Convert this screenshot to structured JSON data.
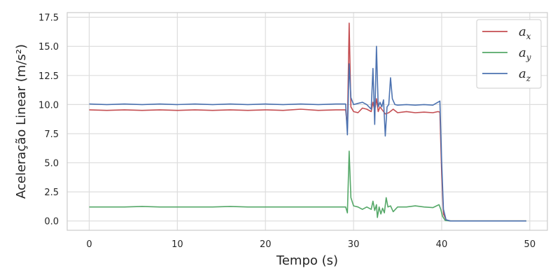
{
  "chart_data": {
    "type": "line",
    "xlabel": "Tempo (s)",
    "ylabel": "Aceleração Linear (m/s²)",
    "xlim": [
      -2.5,
      52.0
    ],
    "ylim": [
      -0.8,
      17.9
    ],
    "xticks": [
      0,
      10,
      20,
      30,
      40,
      50
    ],
    "xtick_labels": [
      "0",
      "10",
      "20",
      "30",
      "40",
      "50"
    ],
    "yticks": [
      0.0,
      2.5,
      5.0,
      7.5,
      10.0,
      12.5,
      15.0,
      17.5
    ],
    "ytick_labels": [
      "0.0",
      "2.5",
      "5.0",
      "7.5",
      "10.0",
      "12.5",
      "15.0",
      "17.5"
    ],
    "grid": true,
    "legend_position": "top-right",
    "series": [
      {
        "name": "a",
        "subscript": "x",
        "color": "#c44e52",
        "points": [
          [
            0,
            9.55
          ],
          [
            2,
            9.5
          ],
          [
            4,
            9.55
          ],
          [
            6,
            9.5
          ],
          [
            8,
            9.55
          ],
          [
            10,
            9.5
          ],
          [
            12,
            9.55
          ],
          [
            14,
            9.5
          ],
          [
            16,
            9.55
          ],
          [
            18,
            9.5
          ],
          [
            20,
            9.55
          ],
          [
            22,
            9.5
          ],
          [
            24,
            9.6
          ],
          [
            26,
            9.5
          ],
          [
            28,
            9.55
          ],
          [
            29.1,
            9.55
          ],
          [
            29.3,
            8.0
          ],
          [
            29.5,
            17.0
          ],
          [
            29.7,
            9.8
          ],
          [
            30.0,
            9.4
          ],
          [
            30.5,
            9.3
          ],
          [
            31.0,
            9.7
          ],
          [
            31.5,
            9.6
          ],
          [
            32.0,
            9.4
          ],
          [
            32.2,
            10.2
          ],
          [
            32.4,
            9.5
          ],
          [
            32.6,
            10.5
          ],
          [
            32.8,
            9.4
          ],
          [
            33.0,
            9.8
          ],
          [
            33.3,
            9.5
          ],
          [
            33.6,
            9.2
          ],
          [
            34.0,
            9.3
          ],
          [
            34.5,
            9.6
          ],
          [
            35.0,
            9.3
          ],
          [
            36.0,
            9.4
          ],
          [
            37.0,
            9.3
          ],
          [
            38.0,
            9.35
          ],
          [
            39.0,
            9.3
          ],
          [
            39.6,
            9.4
          ],
          [
            39.8,
            9.35
          ],
          [
            40.0,
            4.0
          ],
          [
            40.2,
            0.6
          ],
          [
            40.5,
            0.1
          ],
          [
            41.0,
            0.0
          ],
          [
            45.0,
            0.0
          ],
          [
            49.6,
            0.0
          ]
        ]
      },
      {
        "name": "a",
        "subscript": "y",
        "color": "#55a868",
        "points": [
          [
            0,
            1.2
          ],
          [
            2,
            1.2
          ],
          [
            4,
            1.2
          ],
          [
            6,
            1.25
          ],
          [
            8,
            1.2
          ],
          [
            10,
            1.2
          ],
          [
            12,
            1.2
          ],
          [
            14,
            1.2
          ],
          [
            16,
            1.25
          ],
          [
            18,
            1.2
          ],
          [
            20,
            1.2
          ],
          [
            22,
            1.2
          ],
          [
            24,
            1.2
          ],
          [
            26,
            1.2
          ],
          [
            28,
            1.2
          ],
          [
            29.1,
            1.2
          ],
          [
            29.3,
            0.7
          ],
          [
            29.5,
            6.0
          ],
          [
            29.7,
            2.0
          ],
          [
            30.0,
            1.3
          ],
          [
            30.5,
            1.2
          ],
          [
            31.0,
            1.0
          ],
          [
            31.5,
            1.2
          ],
          [
            32.0,
            1.0
          ],
          [
            32.2,
            1.7
          ],
          [
            32.4,
            0.9
          ],
          [
            32.6,
            1.4
          ],
          [
            32.7,
            0.3
          ],
          [
            32.9,
            1.2
          ],
          [
            33.1,
            0.6
          ],
          [
            33.3,
            1.1
          ],
          [
            33.5,
            0.7
          ],
          [
            33.7,
            2.0
          ],
          [
            33.9,
            1.2
          ],
          [
            34.2,
            1.3
          ],
          [
            34.5,
            0.8
          ],
          [
            35.0,
            1.2
          ],
          [
            36.0,
            1.2
          ],
          [
            37.0,
            1.3
          ],
          [
            38.0,
            1.2
          ],
          [
            39.0,
            1.15
          ],
          [
            39.7,
            1.4
          ],
          [
            39.9,
            1.0
          ],
          [
            40.1,
            0.4
          ],
          [
            40.4,
            0.05
          ],
          [
            41.0,
            0.0
          ],
          [
            45.0,
            0.0
          ],
          [
            49.6,
            0.0
          ]
        ]
      },
      {
        "name": "a",
        "subscript": "z",
        "color": "#4c72b0",
        "points": [
          [
            0,
            10.05
          ],
          [
            2,
            10.0
          ],
          [
            4,
            10.05
          ],
          [
            6,
            10.0
          ],
          [
            8,
            10.05
          ],
          [
            10,
            10.0
          ],
          [
            12,
            10.05
          ],
          [
            14,
            10.0
          ],
          [
            16,
            10.05
          ],
          [
            18,
            10.0
          ],
          [
            20,
            10.05
          ],
          [
            22,
            10.0
          ],
          [
            24,
            10.05
          ],
          [
            26,
            10.0
          ],
          [
            28,
            10.05
          ],
          [
            29.1,
            10.05
          ],
          [
            29.3,
            7.4
          ],
          [
            29.5,
            13.5
          ],
          [
            29.7,
            10.6
          ],
          [
            30.0,
            10.0
          ],
          [
            30.5,
            10.1
          ],
          [
            31.0,
            10.2
          ],
          [
            31.5,
            10.0
          ],
          [
            32.0,
            9.6
          ],
          [
            32.2,
            13.1
          ],
          [
            32.4,
            8.3
          ],
          [
            32.6,
            15.0
          ],
          [
            32.8,
            9.8
          ],
          [
            33.0,
            10.2
          ],
          [
            33.2,
            9.8
          ],
          [
            33.4,
            10.4
          ],
          [
            33.6,
            7.3
          ],
          [
            33.8,
            9.8
          ],
          [
            34.0,
            10.0
          ],
          [
            34.2,
            12.3
          ],
          [
            34.4,
            10.5
          ],
          [
            34.7,
            10.0
          ],
          [
            35.0,
            9.95
          ],
          [
            36.0,
            10.0
          ],
          [
            37.0,
            9.95
          ],
          [
            38.0,
            10.0
          ],
          [
            39.0,
            9.95
          ],
          [
            39.8,
            10.3
          ],
          [
            40.0,
            5.0
          ],
          [
            40.2,
            1.0
          ],
          [
            40.5,
            0.1
          ],
          [
            41.0,
            0.0
          ],
          [
            45.0,
            0.0
          ],
          [
            49.6,
            0.0
          ]
        ]
      }
    ]
  }
}
